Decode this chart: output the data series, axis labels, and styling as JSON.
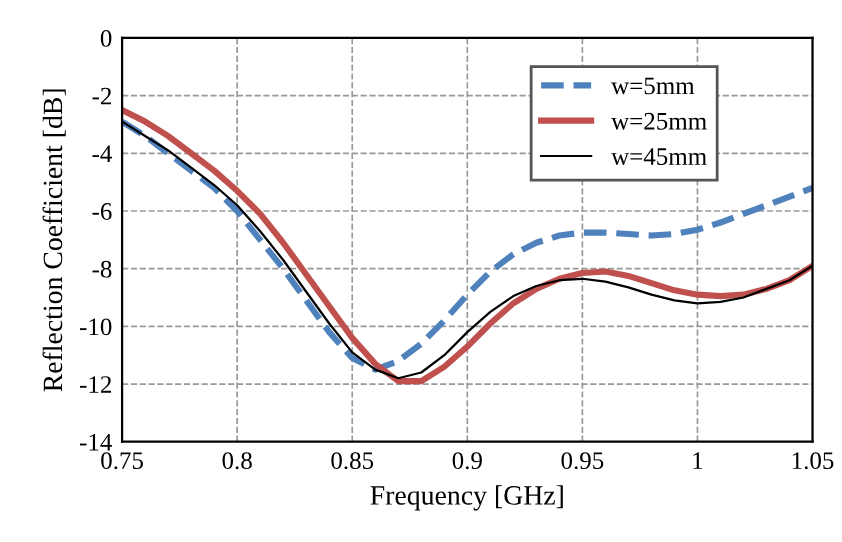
{
  "chart_data": {
    "type": "line",
    "xlabel": "Frequency [GHz]",
    "ylabel": "Reflection Coefficient [dB]",
    "x": [
      0.75,
      0.76,
      0.77,
      0.78,
      0.79,
      0.8,
      0.81,
      0.82,
      0.83,
      0.84,
      0.85,
      0.86,
      0.87,
      0.88,
      0.89,
      0.9,
      0.91,
      0.92,
      0.93,
      0.94,
      0.95,
      0.96,
      0.97,
      0.98,
      0.99,
      1.0,
      1.01,
      1.02,
      1.03,
      1.04,
      1.05
    ],
    "series": [
      {
        "name": "w=5mm",
        "color": "#4f81bd",
        "line_style": "dashed",
        "values": [
          -2.9,
          -3.4,
          -4.0,
          -4.6,
          -5.2,
          -6.0,
          -7.0,
          -8.0,
          -9.1,
          -10.2,
          -11.1,
          -11.5,
          -11.2,
          -10.6,
          -9.8,
          -8.9,
          -8.1,
          -7.5,
          -7.1,
          -6.85,
          -6.75,
          -6.75,
          -6.8,
          -6.85,
          -6.8,
          -6.65,
          -6.4,
          -6.1,
          -5.8,
          -5.5,
          -5.2
        ]
      },
      {
        "name": "w=25mm",
        "color": "#c0504d",
        "line_style": "solid",
        "values": [
          -2.5,
          -2.9,
          -3.4,
          -4.0,
          -4.6,
          -5.3,
          -6.1,
          -7.1,
          -8.2,
          -9.3,
          -10.4,
          -11.3,
          -11.9,
          -11.9,
          -11.4,
          -10.7,
          -9.9,
          -9.2,
          -8.7,
          -8.35,
          -8.15,
          -8.1,
          -8.25,
          -8.5,
          -8.75,
          -8.9,
          -8.95,
          -8.9,
          -8.7,
          -8.4,
          -7.9
        ]
      },
      {
        "name": "w=45mm",
        "color": "#000000",
        "line_style": "solid",
        "values": [
          -2.9,
          -3.4,
          -3.9,
          -4.5,
          -5.1,
          -5.8,
          -6.7,
          -7.7,
          -8.8,
          -9.9,
          -10.9,
          -11.5,
          -11.8,
          -11.6,
          -11.0,
          -10.2,
          -9.5,
          -8.95,
          -8.6,
          -8.4,
          -8.35,
          -8.45,
          -8.65,
          -8.9,
          -9.1,
          -9.2,
          -9.15,
          -9.0,
          -8.7,
          -8.4,
          -7.9
        ]
      }
    ],
    "xlim": [
      0.75,
      1.05
    ],
    "xticks": [
      0.75,
      0.8,
      0.85,
      0.9,
      0.95,
      1,
      1.05
    ],
    "ylim": [
      -14,
      0
    ],
    "yticks": [
      -14,
      -12,
      -10,
      -8,
      -6,
      -4,
      -2,
      0
    ],
    "grid": true,
    "legend": "top right",
    "marker": "none"
  }
}
